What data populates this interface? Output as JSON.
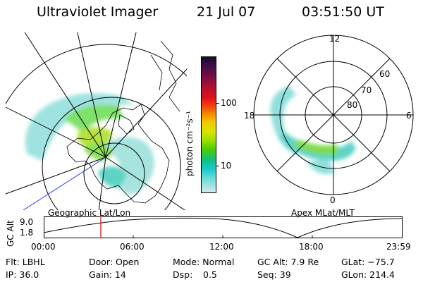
{
  "header": {
    "instrument": "Ultraviolet Imager",
    "date": "21 Jul 07",
    "time": "03:51:50 UT"
  },
  "geo_panel": {
    "label": "Geographic Lat/Lon"
  },
  "apex_panel": {
    "label": "Apex MLat/MLT",
    "mlt_labels": {
      "top": "12",
      "right": "6",
      "bottom": "0",
      "left": "18"
    },
    "lat_labels": [
      "60",
      "70",
      "80"
    ]
  },
  "colorbar": {
    "unit": "photon cm⁻²s⁻¹",
    "tick_labels": [
      "100",
      "10"
    ],
    "colors": [
      "#1a0a2e",
      "#4a0d4a",
      "#7a1040",
      "#b01030",
      "#e0101a",
      "#f04010",
      "#f48a00",
      "#f2c800",
      "#d8e600",
      "#a0e000",
      "#4ccf00",
      "#10c080",
      "#10c8c8",
      "#70dcd8",
      "#d0eaea"
    ]
  },
  "altitude_plot": {
    "ylabel": "GC Alt",
    "ytick_labels": [
      "9.0",
      "1.8"
    ],
    "xtick_labels": [
      "00:00",
      "06:00",
      "12:00",
      "18:00",
      "23:59"
    ],
    "current_time_marker": "03:51:50",
    "marker_color": "#e00000"
  },
  "status": {
    "row1": [
      "Flt: LBHL",
      "Door: Open",
      "Mode: Normal",
      "GC Alt: 7.9 Re",
      "GLat: −75.7"
    ],
    "row2": [
      "IP: 36.0",
      "Gain: 14",
      "Dsp:",
      "0.5",
      "Seq: 39",
      "GLon: 214.4"
    ]
  }
}
